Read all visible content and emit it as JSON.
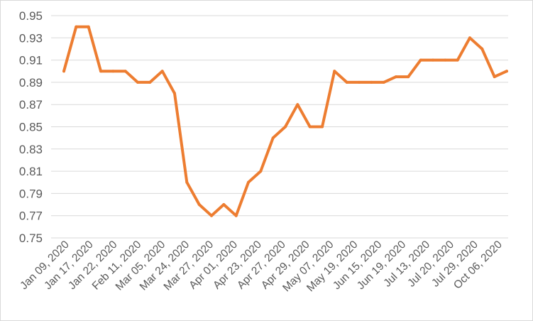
{
  "chart_data": {
    "type": "line",
    "title": "",
    "xlabel": "",
    "ylabel": "",
    "ylim": [
      0.75,
      0.95
    ],
    "yticks": [
      "0.75",
      "0.77",
      "0.79",
      "0.81",
      "0.83",
      "0.85",
      "0.87",
      "0.89",
      "0.91",
      "0.93",
      "0.95"
    ],
    "grid": true,
    "legend": "none",
    "x_tick_labels": [
      "Jan 09, 2020",
      "Jan 17, 2020",
      "Jan 22, 2020",
      "Feb 11, 2020",
      "Mar 05, 2020",
      "Mar 24, 2020",
      "Mar 27, 2020",
      "Apr 01, 2020",
      "Apr 23, 2020",
      "Apr 27, 2020",
      "Apr 29, 2020",
      "May 07, 2020",
      "May 19, 2020",
      "Jun 15, 2020",
      "Jun 19, 2020",
      "Jul 13, 2020",
      "Jul 20, 2020",
      "Jul 29, 2020",
      "Oct 06, 2020"
    ],
    "series": [
      {
        "color": "#ED7D31",
        "values": [
          0.9,
          0.94,
          0.94,
          0.9,
          0.9,
          0.9,
          0.89,
          0.89,
          0.9,
          0.88,
          0.8,
          0.78,
          0.77,
          0.78,
          0.77,
          0.8,
          0.81,
          0.84,
          0.85,
          0.87,
          0.85,
          0.85,
          0.9,
          0.89,
          0.89,
          0.89,
          0.89,
          0.895,
          0.895,
          0.91,
          0.91,
          0.91,
          0.91,
          0.93,
          0.92,
          0.895,
          0.9
        ]
      }
    ]
  }
}
